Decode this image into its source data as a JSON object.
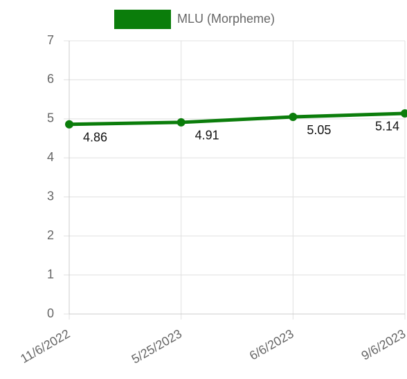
{
  "chart_data": {
    "type": "line",
    "categories": [
      "11/6/2022",
      "5/25/2023",
      "6/6/2023",
      "9/6/2023"
    ],
    "series": [
      {
        "name": "MLU (Morpheme)",
        "color": "#0b7d0b",
        "values": [
          4.86,
          4.91,
          5.05,
          5.14
        ]
      }
    ],
    "ylim": [
      0,
      7
    ],
    "yticks": [
      0,
      1,
      2,
      3,
      4,
      5,
      6,
      7
    ],
    "grid": true,
    "legend": "top"
  }
}
